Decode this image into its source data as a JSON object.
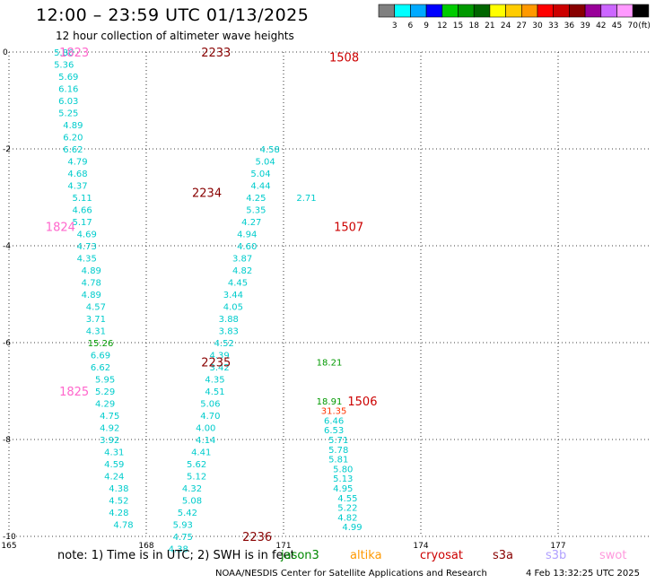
{
  "header": {
    "title": "12:00 – 23:59 UTC 01/13/2025",
    "subtitle": "12 hour collection of altimeter wave heights"
  },
  "colorbar": {
    "colors": [
      "#808080",
      "#00ffff",
      "#00aaff",
      "#0000ff",
      "#00cc00",
      "#009900",
      "#006600",
      "#ffff00",
      "#ffcc00",
      "#ff9900",
      "#ff0000",
      "#cc0000",
      "#880000",
      "#990099",
      "#cc66ff",
      "#ff99ff",
      "#000000"
    ],
    "labels": [
      "3",
      "6",
      "9",
      "12",
      "15",
      "18",
      "21",
      "24",
      "27",
      "30",
      "33",
      "36",
      "39",
      "42",
      "45",
      "70"
    ],
    "unit": "(ft)"
  },
  "chart_data": {
    "type": "scatter",
    "title": "12:00 – 23:59 UTC 01/13/2025",
    "subtitle": "12 hour collection of altimeter wave heights",
    "x_ticks": [
      "165",
      "168",
      "171",
      "174",
      "177"
    ],
    "y_ticks": [
      "0",
      "-2",
      "-4",
      "-6",
      "-8",
      "-10"
    ],
    "xlim": [
      165,
      179
    ],
    "ylim": [
      -10,
      0
    ],
    "grid": true,
    "passes": [
      {
        "satellite": "swot",
        "color": "#ff66cc",
        "pass_time": "1823",
        "label_pos": [
          166.1,
          0.0
        ]
      },
      {
        "satellite": "swot",
        "color": "#ff66cc",
        "pass_time": "1824",
        "label_pos": [
          165.8,
          -3.6
        ]
      },
      {
        "satellite": "swot",
        "color": "#ff66cc",
        "pass_time": "1825",
        "label_pos": [
          166.1,
          -7.0
        ]
      },
      {
        "satellite": "s3a",
        "color": "#880000",
        "pass_time": "2233",
        "label_pos": [
          169.2,
          0.0
        ]
      },
      {
        "satellite": "s3a",
        "color": "#880000",
        "pass_time": "2234",
        "label_pos": [
          169.0,
          -2.9
        ]
      },
      {
        "satellite": "s3a",
        "color": "#880000",
        "pass_time": "2235",
        "label_pos": [
          169.2,
          -6.4
        ]
      },
      {
        "satellite": "s3a",
        "color": "#880000",
        "pass_time": "2236",
        "label_pos": [
          170.1,
          -10.0
        ]
      },
      {
        "satellite": "cryosat",
        "color": "#cc0000",
        "pass_time": "1508",
        "label_pos": [
          172.0,
          -0.1
        ]
      },
      {
        "satellite": "cryosat",
        "color": "#cc0000",
        "pass_time": "1507",
        "label_pos": [
          172.1,
          -3.6
        ]
      },
      {
        "satellite": "cryosat",
        "color": "#cc0000",
        "pass_time": "1506",
        "label_pos": [
          172.4,
          -7.2
        ]
      }
    ],
    "series": [
      {
        "name": "swot",
        "color": "#00cccc",
        "points": [
          [
            166.2,
            0.0,
            "5.80"
          ],
          [
            166.2,
            -0.25,
            "5.36"
          ],
          [
            166.3,
            -0.5,
            "5.69"
          ],
          [
            166.3,
            -0.75,
            "6.16"
          ],
          [
            166.3,
            -1.0,
            "6.03"
          ],
          [
            166.3,
            -1.25,
            "5.25"
          ],
          [
            166.4,
            -1.5,
            "4.89"
          ],
          [
            166.4,
            -1.75,
            "6.20"
          ],
          [
            166.4,
            -2.0,
            "6.62"
          ],
          [
            166.5,
            -2.25,
            "4.79"
          ],
          [
            166.5,
            -2.5,
            "4.68"
          ],
          [
            166.5,
            -2.75,
            "4.37"
          ],
          [
            166.6,
            -3.0,
            "5.11"
          ],
          [
            166.6,
            -3.25,
            "4.66"
          ],
          [
            166.6,
            -3.5,
            "5.17"
          ],
          [
            166.7,
            -3.75,
            "4.69"
          ],
          [
            166.7,
            -4.0,
            "4.73"
          ],
          [
            166.7,
            -4.25,
            "4.35"
          ],
          [
            166.8,
            -4.5,
            "4.89"
          ],
          [
            166.8,
            -4.75,
            "4.78"
          ],
          [
            166.8,
            -5.0,
            "4.89"
          ],
          [
            166.9,
            -5.25,
            "4.57"
          ],
          [
            166.9,
            -5.5,
            "3.71"
          ],
          [
            166.9,
            -5.75,
            "4.31"
          ],
          [
            167.0,
            -6.0,
            "15.26"
          ],
          [
            167.0,
            -6.25,
            "6.69"
          ],
          [
            167.0,
            -6.5,
            "6.62"
          ],
          [
            167.1,
            -6.75,
            "5.95"
          ],
          [
            167.1,
            -7.0,
            "5.29"
          ],
          [
            167.1,
            -7.25,
            "4.29"
          ],
          [
            167.2,
            -7.5,
            "4.75"
          ],
          [
            167.2,
            -7.75,
            "4.92"
          ],
          [
            167.2,
            -8.0,
            "3.92"
          ],
          [
            167.3,
            -8.25,
            "4.31"
          ],
          [
            167.3,
            -8.5,
            "4.59"
          ],
          [
            167.3,
            -8.75,
            "4.24"
          ],
          [
            167.4,
            -9.0,
            "4.38"
          ],
          [
            167.4,
            -9.25,
            "4.52"
          ],
          [
            167.4,
            -9.5,
            "4.28"
          ],
          [
            167.5,
            -9.75,
            "4.78"
          ]
        ]
      },
      {
        "name": "s3a",
        "color": "#00cccc",
        "points": [
          [
            170.7,
            -2.0,
            "4.58"
          ],
          [
            170.6,
            -2.25,
            "5.04"
          ],
          [
            170.5,
            -2.5,
            "5.04"
          ],
          [
            170.5,
            -2.75,
            "4.44"
          ],
          [
            170.4,
            -3.0,
            "4.25"
          ],
          [
            170.4,
            -3.25,
            "5.35"
          ],
          [
            170.3,
            -3.5,
            "4.27"
          ],
          [
            170.2,
            -3.75,
            "4.94"
          ],
          [
            170.2,
            -4.0,
            "4.60"
          ],
          [
            170.1,
            -4.25,
            "3.87"
          ],
          [
            170.1,
            -4.5,
            "4.82"
          ],
          [
            170.0,
            -4.75,
            "4.45"
          ],
          [
            169.9,
            -5.0,
            "3.44"
          ],
          [
            169.9,
            -5.25,
            "4.05"
          ],
          [
            169.8,
            -5.5,
            "3.88"
          ],
          [
            169.8,
            -5.75,
            "3.83"
          ],
          [
            169.7,
            -6.0,
            "4.52"
          ],
          [
            169.6,
            -6.25,
            "4.39"
          ],
          [
            169.6,
            -6.5,
            "3.42"
          ],
          [
            169.5,
            -6.75,
            "4.35"
          ],
          [
            169.5,
            -7.0,
            "4.51"
          ],
          [
            169.4,
            -7.25,
            "5.06"
          ],
          [
            169.4,
            -7.5,
            "4.70"
          ],
          [
            169.3,
            -7.75,
            "4.00"
          ],
          [
            169.3,
            -8.0,
            "4.14"
          ],
          [
            169.2,
            -8.25,
            "4.41"
          ],
          [
            169.1,
            -8.5,
            "5.62"
          ],
          [
            169.1,
            -8.75,
            "5.12"
          ],
          [
            169.0,
            -9.0,
            "4.32"
          ],
          [
            169.0,
            -9.25,
            "5.08"
          ],
          [
            168.9,
            -9.5,
            "5.42"
          ],
          [
            168.8,
            -9.75,
            "5.93"
          ],
          [
            168.8,
            -10.0,
            "4.75"
          ],
          [
            168.7,
            -10.25,
            "4.38"
          ]
        ]
      },
      {
        "name": "cryosat",
        "color": "#00cccc",
        "points": [
          [
            171.5,
            -3.0,
            "2.71"
          ],
          [
            172.0,
            -6.4,
            "18.21"
          ],
          [
            172.0,
            -7.2,
            "18.91"
          ],
          [
            172.1,
            -7.4,
            "31.35"
          ],
          [
            172.1,
            -7.6,
            "6.46"
          ],
          [
            172.1,
            -7.8,
            "6.53"
          ],
          [
            172.2,
            -8.0,
            "5.71"
          ],
          [
            172.2,
            -8.2,
            "5.78"
          ],
          [
            172.2,
            -8.4,
            "5.81"
          ],
          [
            172.3,
            -8.6,
            "5.80"
          ],
          [
            172.3,
            -8.8,
            "5.13"
          ],
          [
            172.3,
            -9.0,
            "4.95"
          ],
          [
            172.4,
            -9.2,
            "4.55"
          ],
          [
            172.4,
            -9.4,
            "5.22"
          ],
          [
            172.4,
            -9.6,
            "4.82"
          ],
          [
            172.5,
            -9.8,
            "4.99"
          ]
        ]
      }
    ]
  },
  "footer": {
    "note": "note:  1) Time is in UTC; 2) SWH is in feet",
    "satellites": [
      {
        "name": "jason3",
        "color": "#008800",
        "left": 313
      },
      {
        "name": "altika",
        "color": "#ff9900",
        "left": 390
      },
      {
        "name": "cryosat",
        "color": "#cc0000",
        "left": 468
      },
      {
        "name": "s3a",
        "color": "#880000",
        "left": 549
      },
      {
        "name": "s3b",
        "color": "#b0a0ff",
        "left": 608
      },
      {
        "name": "swot",
        "color": "#ff99dd",
        "left": 668
      }
    ],
    "credit": "NOAA/NESDIS Center for Satellite Applications and Research",
    "timestamp": "4 Feb 13:32:25 UTC 2025"
  }
}
